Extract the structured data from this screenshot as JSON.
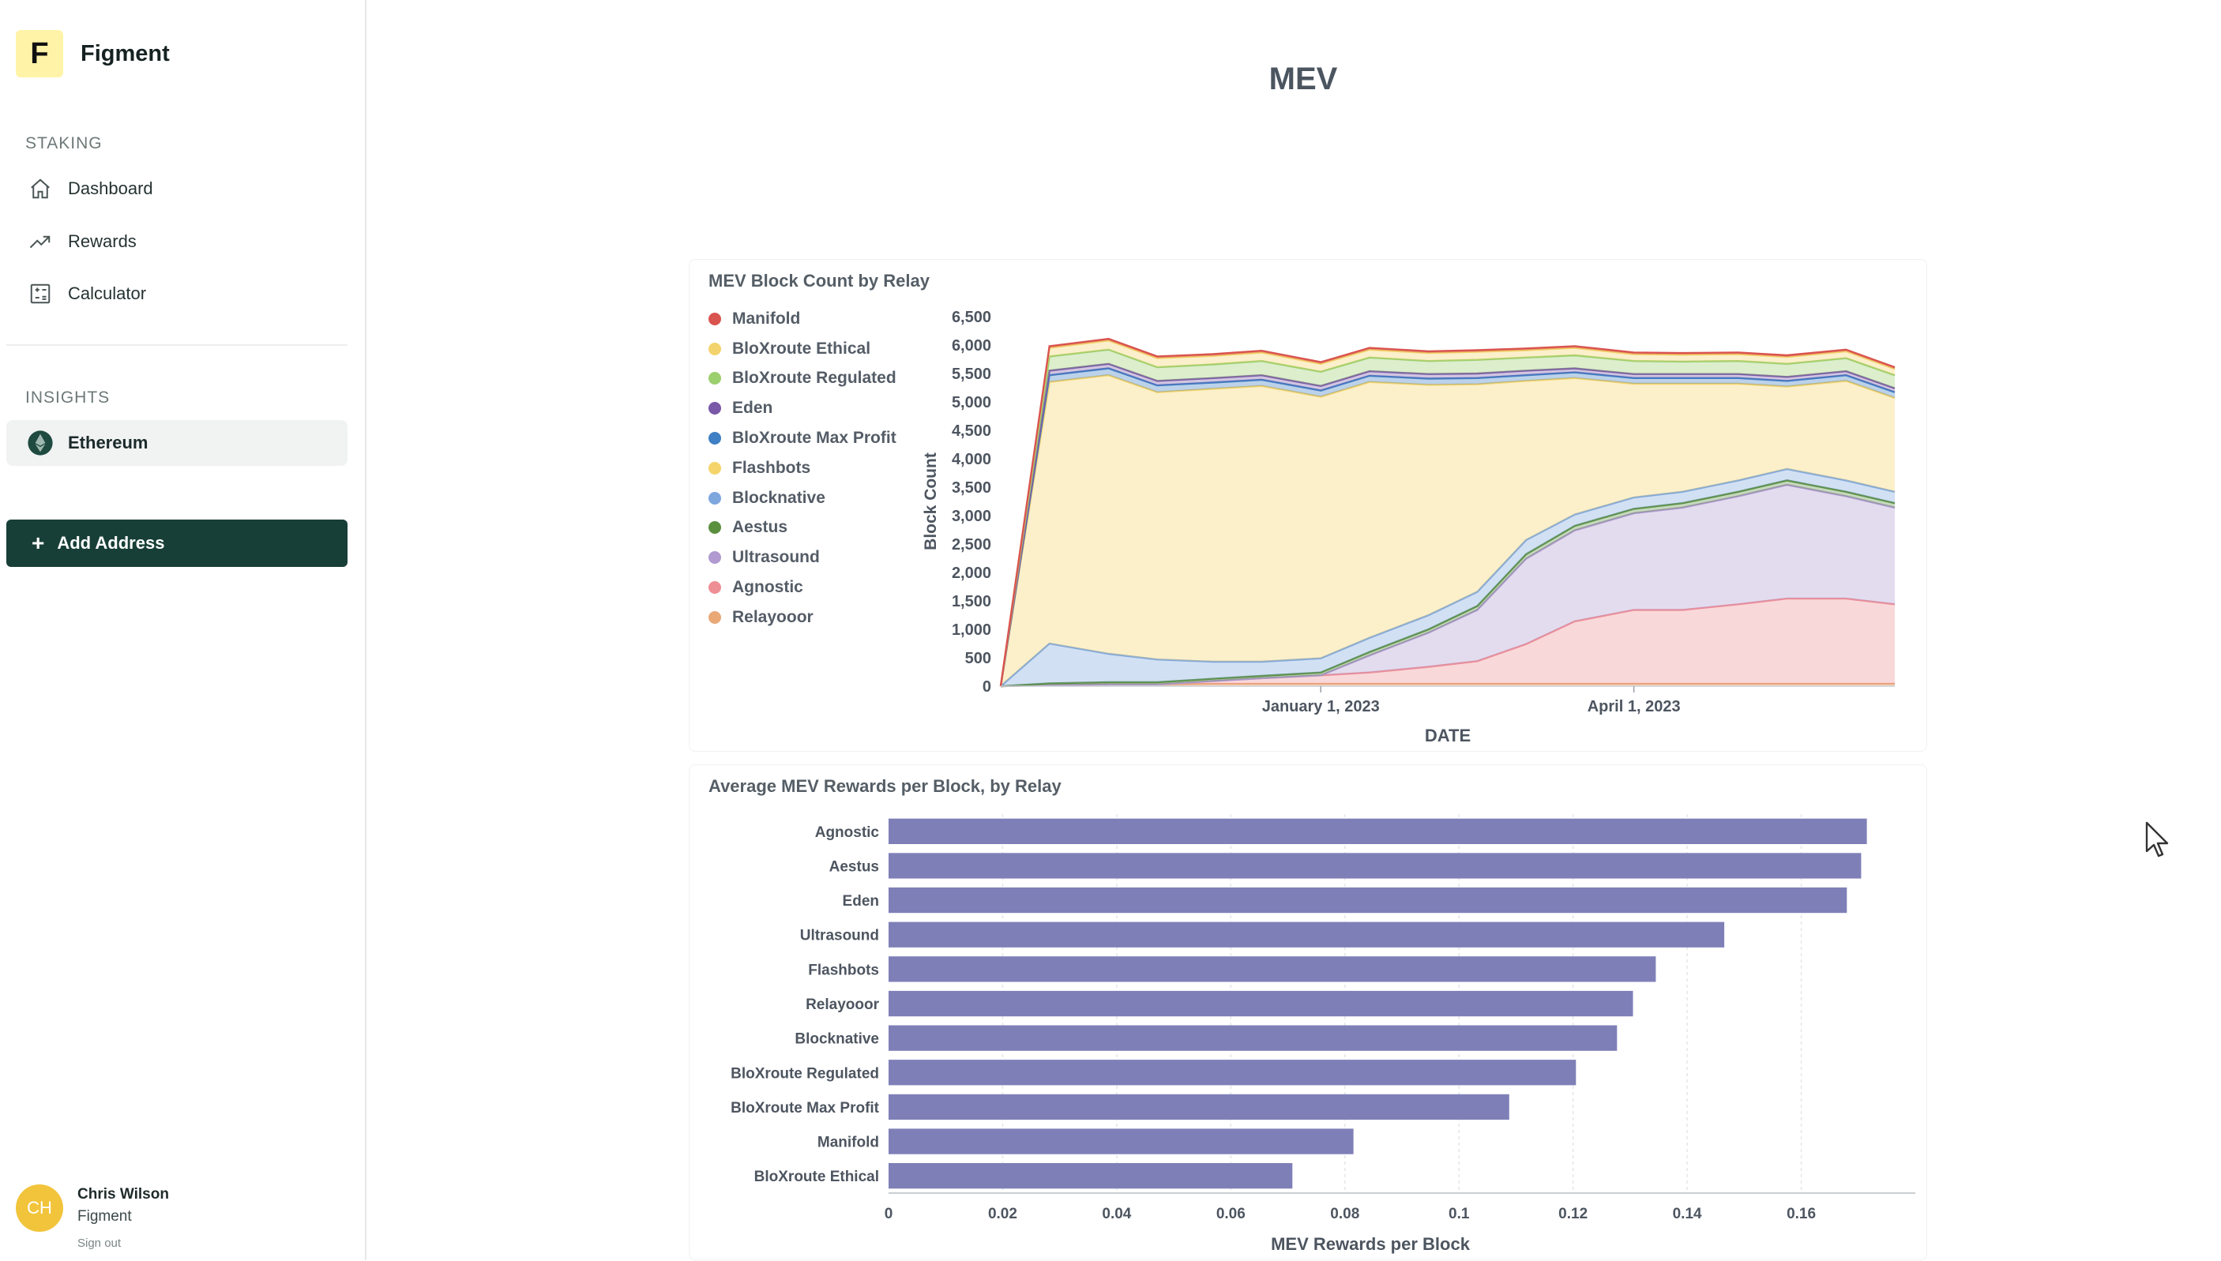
{
  "app": {
    "brand_letter": "F",
    "brand_name": "Figment"
  },
  "sidebar": {
    "staking_label": "STAKING",
    "staking_items": [
      {
        "label": "Dashboard",
        "icon": "home-icon"
      },
      {
        "label": "Rewards",
        "icon": "trending-up-icon"
      },
      {
        "label": "Calculator",
        "icon": "calculator-icon"
      }
    ],
    "insights_label": "INSIGHTS",
    "insights_items": [
      {
        "label": "Ethereum",
        "icon": "ethereum-icon",
        "active": true
      }
    ],
    "add_address_label": "Add Address"
  },
  "user": {
    "initials": "CH",
    "name": "Chris Wilson",
    "org": "Figment",
    "sign_out": "Sign out"
  },
  "page": {
    "title": "MEV"
  },
  "chart_data": [
    {
      "type": "area",
      "title": "MEV Block Count by Relay",
      "xlabel": "DATE",
      "ylabel": "Block Count",
      "ylim": [
        0,
        6500
      ],
      "yticks": [
        0,
        500,
        1000,
        1500,
        2000,
        2500,
        3000,
        3500,
        4000,
        4500,
        5000,
        5500,
        6000,
        6500
      ],
      "ytick_labels": [
        "0",
        "500",
        "1,000",
        "1,500",
        "2,000",
        "2,500",
        "3,000",
        "3,500",
        "4,000",
        "4,500",
        "5,000",
        "5,500",
        "6,000",
        "6,500"
      ],
      "xticks": [
        "January 1, 2023",
        "April 1, 2023"
      ],
      "x_dates": [
        "2022-10-01",
        "2022-10-15",
        "2022-11-01",
        "2022-11-15",
        "2022-12-01",
        "2022-12-15",
        "2023-01-01",
        "2023-01-15",
        "2023-02-01",
        "2023-02-15",
        "2023-03-01",
        "2023-03-15",
        "2023-04-01",
        "2023-04-15",
        "2023-05-01",
        "2023-05-15",
        "2023-06-01",
        "2023-06-15"
      ],
      "stack_order": [
        "Relayooor",
        "Agnostic",
        "Ultrasound",
        "Aestus",
        "Blocknative",
        "Flashbots",
        "BloXroute Max Profit",
        "Eden",
        "BloXroute Regulated",
        "BloXroute Ethical",
        "Manifold"
      ],
      "legend": "left",
      "series": [
        {
          "name": "Manifold",
          "color": "#d9534f",
          "values": [
            0,
            30,
            30,
            30,
            30,
            30,
            30,
            30,
            30,
            30,
            30,
            30,
            30,
            30,
            30,
            30,
            30,
            30
          ]
        },
        {
          "name": "BloXroute Ethical",
          "color": "#f3d36b",
          "values": [
            0,
            150,
            160,
            160,
            150,
            150,
            140,
            140,
            140,
            140,
            130,
            130,
            120,
            120,
            120,
            120,
            120,
            110
          ]
        },
        {
          "name": "BloXroute Regulated",
          "color": "#9ccf6e",
          "values": [
            0,
            250,
            250,
            240,
            240,
            250,
            250,
            240,
            230,
            240,
            230,
            230,
            230,
            220,
            230,
            230,
            230,
            230
          ]
        },
        {
          "name": "Eden",
          "color": "#7a58a8",
          "values": [
            0,
            80,
            80,
            80,
            80,
            80,
            80,
            80,
            80,
            80,
            80,
            70,
            70,
            70,
            70,
            70,
            70,
            70
          ]
        },
        {
          "name": "BloXroute Max Profit",
          "color": "#3f7fc4",
          "values": [
            0,
            120,
            120,
            120,
            110,
            110,
            110,
            110,
            110,
            110,
            100,
            100,
            100,
            100,
            100,
            100,
            100,
            100
          ]
        },
        {
          "name": "Flashbots",
          "color": "#f5d46a",
          "values": [
            0,
            4600,
            4900,
            4700,
            4800,
            4850,
            4600,
            4500,
            4050,
            3650,
            2800,
            2400,
            2000,
            1900,
            1700,
            1450,
            1750,
            1650
          ]
        },
        {
          "name": "Blocknative",
          "color": "#7ea7de",
          "values": [
            0,
            700,
            500,
            400,
            300,
            250,
            250,
            250,
            250,
            250,
            250,
            200,
            200,
            200,
            200,
            200,
            200,
            200
          ]
        },
        {
          "name": "Aestus",
          "color": "#5a8f3e",
          "values": [
            0,
            30,
            40,
            40,
            40,
            40,
            50,
            60,
            60,
            70,
            80,
            80,
            80,
            80,
            80,
            80,
            80,
            80
          ]
        },
        {
          "name": "Ultrasound",
          "color": "#b09ad0",
          "values": [
            0,
            0,
            0,
            0,
            0,
            0,
            0,
            300,
            600,
            900,
            1500,
            1600,
            1700,
            1800,
            1900,
            2000,
            1800,
            1700
          ]
        },
        {
          "name": "Agnostic",
          "color": "#ee8f96",
          "values": [
            0,
            0,
            0,
            0,
            50,
            100,
            150,
            200,
            300,
            400,
            700,
            1100,
            1300,
            1300,
            1400,
            1500,
            1500,
            1400
          ]
        },
        {
          "name": "Relayooor",
          "color": "#eaa877",
          "values": [
            0,
            20,
            30,
            30,
            40,
            40,
            40,
            40,
            40,
            40,
            40,
            40,
            40,
            40,
            40,
            40,
            40,
            40
          ]
        }
      ]
    },
    {
      "type": "bar",
      "orientation": "horizontal",
      "title": "Average MEV Rewards per Block, by Relay",
      "xlabel": "MEV Rewards per Block",
      "xlim": [
        0,
        0.18
      ],
      "xticks": [
        0,
        0.02,
        0.04,
        0.06,
        0.08,
        0.1,
        0.12,
        0.14,
        0.16
      ],
      "xtick_labels": [
        "0",
        "0.02",
        "0.04",
        "0.06",
        "0.08",
        "0.1",
        "0.12",
        "0.14",
        "0.16"
      ],
      "color": "#7f7fb8",
      "categories": [
        "Agnostic",
        "Aestus",
        "Eden",
        "Ultrasound",
        "Flashbots",
        "Relayooor",
        "Blocknative",
        "BloXroute Regulated",
        "BloXroute Max Profit",
        "Manifold",
        "BloXroute Ethical"
      ],
      "values": [
        0.1715,
        0.1705,
        0.168,
        0.1465,
        0.1345,
        0.1305,
        0.1277,
        0.1205,
        0.1088,
        0.0815,
        0.0708
      ]
    }
  ]
}
